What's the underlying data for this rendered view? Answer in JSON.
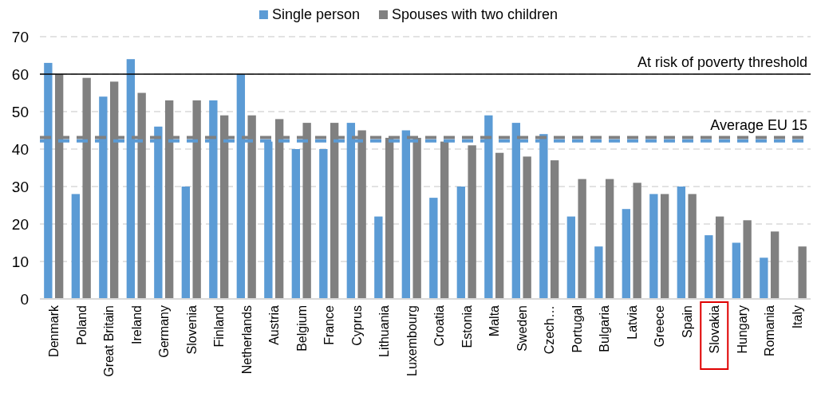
{
  "chart_data": {
    "type": "bar",
    "categories": [
      "Denmark",
      "Poland",
      "Great Britain",
      "Ireland",
      "Germany",
      "Slovenia",
      "Finland",
      "Netherlands",
      "Austria",
      "Belgium",
      "France",
      "Cyprus",
      "Lithuania",
      "Luxembourg",
      "Croatia",
      "Estonia",
      "Malta",
      "Sweden",
      "Czech…",
      "Portugal",
      "Bulgaria",
      "Latvia",
      "Greece",
      "Spain",
      "Slovakia",
      "Hungary",
      "Romania",
      "Italy"
    ],
    "series": [
      {
        "name": "Single person",
        "color": "#5b9bd5",
        "values": [
          63,
          28,
          54,
          64,
          46,
          30,
          53,
          60,
          42,
          40,
          40,
          47,
          22,
          45,
          27,
          30,
          49,
          47,
          44,
          22,
          14,
          24,
          28,
          30,
          17,
          15,
          11,
          null
        ]
      },
      {
        "name": "Spouses with two children",
        "color": "#808080",
        "values": [
          60,
          59,
          58,
          55,
          53,
          53,
          49,
          49,
          48,
          47,
          47,
          45,
          43,
          43,
          42,
          41,
          39,
          38,
          37,
          32,
          32,
          31,
          28,
          28,
          22,
          21,
          18,
          14
        ]
      }
    ],
    "ylim": [
      0,
      70
    ],
    "yticks": [
      0,
      10,
      20,
      30,
      40,
      50,
      60,
      70
    ],
    "grid": "y",
    "legend": "top",
    "ref_lines": [
      {
        "axis": "y",
        "value": 60,
        "label": "At risk of poverty threshold",
        "color": "#000000",
        "line_style": "solid"
      },
      {
        "axis": "y",
        "value": 43.1,
        "label": "Average EU 15",
        "color": "#808080",
        "line_style": "dashed"
      },
      {
        "axis": "y",
        "value": 42.2,
        "label": null,
        "color": "#5b9bd5",
        "line_style": "dashed"
      }
    ]
  }
}
